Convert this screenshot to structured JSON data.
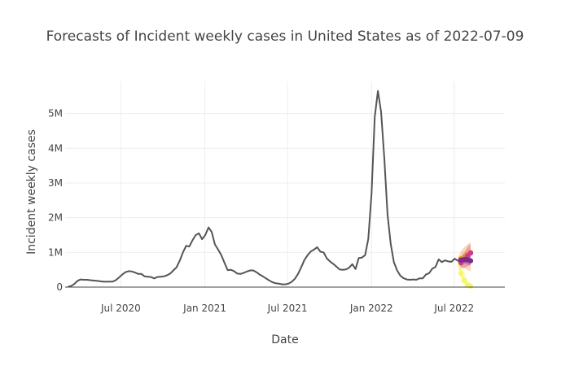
{
  "chart_data": {
    "type": "line",
    "title": "Forecasts of Incident weekly cases in United States as of 2022-07-09",
    "xlabel": "Date",
    "ylabel": "Incident weekly cases",
    "x_ticks": [
      {
        "date": "2020-07-01",
        "label": "Jul 2020"
      },
      {
        "date": "2021-01-01",
        "label": "Jan 2021"
      },
      {
        "date": "2021-07-01",
        "label": "Jul 2021"
      },
      {
        "date": "2022-01-01",
        "label": "Jan 2022"
      },
      {
        "date": "2022-07-01",
        "label": "Jul 2022"
      }
    ],
    "y_ticks": [
      {
        "value": 0,
        "label": "0"
      },
      {
        "value": 1000000,
        "label": "1M"
      },
      {
        "value": 2000000,
        "label": "2M"
      },
      {
        "value": 3000000,
        "label": "3M"
      },
      {
        "value": 4000000,
        "label": "4M"
      },
      {
        "value": 5000000,
        "label": "5M"
      }
    ],
    "xlim": [
      "2020-03-01",
      "2022-10-20"
    ],
    "ylim": [
      0,
      5930000
    ],
    "grid": true,
    "colors": {
      "truth": "#555555",
      "forecast_dark": "#7b2d8e",
      "forecast_mid": "#c93d8a",
      "forecast_orange": "#f0923c",
      "forecast_yellow": "#f5f56a",
      "grid": "#eeeeee",
      "axis": "#444444"
    },
    "series": [
      {
        "kind": "truth",
        "points": [
          [
            "2020-03-07",
            10000
          ],
          [
            "2020-03-14",
            30000
          ],
          [
            "2020-03-21",
            90000
          ],
          [
            "2020-03-28",
            180000
          ],
          [
            "2020-04-04",
            220000
          ],
          [
            "2020-04-11",
            210000
          ],
          [
            "2020-04-18",
            210000
          ],
          [
            "2020-04-25",
            200000
          ],
          [
            "2020-05-02",
            190000
          ],
          [
            "2020-05-09",
            180000
          ],
          [
            "2020-05-16",
            170000
          ],
          [
            "2020-05-23",
            160000
          ],
          [
            "2020-05-30",
            155000
          ],
          [
            "2020-06-06",
            160000
          ],
          [
            "2020-06-13",
            160000
          ],
          [
            "2020-06-20",
            200000
          ],
          [
            "2020-06-27",
            280000
          ],
          [
            "2020-07-04",
            360000
          ],
          [
            "2020-07-11",
            430000
          ],
          [
            "2020-07-18",
            460000
          ],
          [
            "2020-07-25",
            450000
          ],
          [
            "2020-08-01",
            420000
          ],
          [
            "2020-08-08",
            380000
          ],
          [
            "2020-08-15",
            380000
          ],
          [
            "2020-08-22",
            310000
          ],
          [
            "2020-08-29",
            300000
          ],
          [
            "2020-09-05",
            290000
          ],
          [
            "2020-09-12",
            250000
          ],
          [
            "2020-09-19",
            290000
          ],
          [
            "2020-09-26",
            300000
          ],
          [
            "2020-10-03",
            310000
          ],
          [
            "2020-10-10",
            340000
          ],
          [
            "2020-10-17",
            390000
          ],
          [
            "2020-10-24",
            480000
          ],
          [
            "2020-10-31",
            570000
          ],
          [
            "2020-11-07",
            760000
          ],
          [
            "2020-11-14",
            1000000
          ],
          [
            "2020-11-21",
            1190000
          ],
          [
            "2020-11-28",
            1170000
          ],
          [
            "2020-12-05",
            1350000
          ],
          [
            "2020-12-12",
            1500000
          ],
          [
            "2020-12-19",
            1550000
          ],
          [
            "2020-12-26",
            1380000
          ],
          [
            "2021-01-02",
            1500000
          ],
          [
            "2021-01-09",
            1720000
          ],
          [
            "2021-01-16",
            1590000
          ],
          [
            "2021-01-23",
            1230000
          ],
          [
            "2021-01-30",
            1080000
          ],
          [
            "2021-02-06",
            920000
          ],
          [
            "2021-02-13",
            700000
          ],
          [
            "2021-02-20",
            490000
          ],
          [
            "2021-02-27",
            500000
          ],
          [
            "2021-03-06",
            460000
          ],
          [
            "2021-03-13",
            390000
          ],
          [
            "2021-03-20",
            380000
          ],
          [
            "2021-03-27",
            410000
          ],
          [
            "2021-04-03",
            450000
          ],
          [
            "2021-04-10",
            480000
          ],
          [
            "2021-04-17",
            480000
          ],
          [
            "2021-04-24",
            430000
          ],
          [
            "2021-05-01",
            360000
          ],
          [
            "2021-05-08",
            310000
          ],
          [
            "2021-05-15",
            250000
          ],
          [
            "2021-05-22",
            190000
          ],
          [
            "2021-05-29",
            140000
          ],
          [
            "2021-06-05",
            110000
          ],
          [
            "2021-06-12",
            100000
          ],
          [
            "2021-06-19",
            80000
          ],
          [
            "2021-06-26",
            80000
          ],
          [
            "2021-07-03",
            100000
          ],
          [
            "2021-07-10",
            150000
          ],
          [
            "2021-07-17",
            240000
          ],
          [
            "2021-07-24",
            380000
          ],
          [
            "2021-07-31",
            570000
          ],
          [
            "2021-08-07",
            780000
          ],
          [
            "2021-08-14",
            920000
          ],
          [
            "2021-08-21",
            1030000
          ],
          [
            "2021-08-28",
            1080000
          ],
          [
            "2021-09-04",
            1150000
          ],
          [
            "2021-09-11",
            1020000
          ],
          [
            "2021-09-18",
            1000000
          ],
          [
            "2021-09-25",
            830000
          ],
          [
            "2021-10-02",
            740000
          ],
          [
            "2021-10-09",
            670000
          ],
          [
            "2021-10-16",
            590000
          ],
          [
            "2021-10-23",
            510000
          ],
          [
            "2021-10-30",
            500000
          ],
          [
            "2021-11-06",
            510000
          ],
          [
            "2021-11-13",
            560000
          ],
          [
            "2021-11-20",
            660000
          ],
          [
            "2021-11-27",
            520000
          ],
          [
            "2021-12-04",
            840000
          ],
          [
            "2021-12-11",
            850000
          ],
          [
            "2021-12-18",
            920000
          ],
          [
            "2021-12-25",
            1390000
          ],
          [
            "2022-01-01",
            2700000
          ],
          [
            "2022-01-08",
            4900000
          ],
          [
            "2022-01-15",
            5650000
          ],
          [
            "2022-01-22",
            5050000
          ],
          [
            "2022-01-29",
            3700000
          ],
          [
            "2022-02-05",
            2100000
          ],
          [
            "2022-02-12",
            1250000
          ],
          [
            "2022-02-19",
            720000
          ],
          [
            "2022-02-26",
            480000
          ],
          [
            "2022-03-05",
            330000
          ],
          [
            "2022-03-12",
            260000
          ],
          [
            "2022-03-19",
            220000
          ],
          [
            "2022-03-26",
            210000
          ],
          [
            "2022-04-02",
            220000
          ],
          [
            "2022-04-09",
            210000
          ],
          [
            "2022-04-16",
            250000
          ],
          [
            "2022-04-23",
            250000
          ],
          [
            "2022-04-30",
            360000
          ],
          [
            "2022-05-07",
            400000
          ],
          [
            "2022-05-14",
            530000
          ],
          [
            "2022-05-21",
            580000
          ],
          [
            "2022-05-28",
            800000
          ],
          [
            "2022-06-04",
            720000
          ],
          [
            "2022-06-11",
            770000
          ],
          [
            "2022-06-18",
            740000
          ],
          [
            "2022-06-25",
            730000
          ],
          [
            "2022-07-02",
            820000
          ],
          [
            "2022-07-09",
            760000
          ]
        ]
      },
      {
        "kind": "forecast",
        "color": "#f5f56a",
        "points": [
          [
            "2022-07-09",
            760000
          ],
          [
            "2022-07-16",
            400000
          ],
          [
            "2022-07-23",
            200000
          ],
          [
            "2022-07-30",
            60000
          ],
          [
            "2022-08-06",
            30000
          ]
        ],
        "band": [
          [
            "2022-07-09",
            600000,
            900000
          ],
          [
            "2022-07-16",
            150000,
            800000
          ],
          [
            "2022-07-23",
            40000,
            500000
          ],
          [
            "2022-07-30",
            0,
            200000
          ],
          [
            "2022-08-06",
            0,
            120000
          ]
        ]
      },
      {
        "kind": "forecast",
        "color": "#f0923c",
        "points": [
          [
            "2022-07-09",
            760000
          ],
          [
            "2022-07-16",
            820000
          ],
          [
            "2022-07-23",
            880000
          ],
          [
            "2022-07-30",
            950000
          ],
          [
            "2022-08-06",
            1000000
          ]
        ],
        "band": [
          [
            "2022-07-09",
            700000,
            820000
          ],
          [
            "2022-07-16",
            600000,
            1050000
          ],
          [
            "2022-07-23",
            550000,
            1150000
          ],
          [
            "2022-07-30",
            500000,
            1230000
          ],
          [
            "2022-08-06",
            450000,
            1300000
          ]
        ]
      },
      {
        "kind": "forecast",
        "color": "#c93d8a",
        "points": [
          [
            "2022-07-09",
            760000
          ],
          [
            "2022-07-16",
            700000
          ],
          [
            "2022-07-23",
            780000
          ],
          [
            "2022-07-30",
            900000
          ],
          [
            "2022-08-06",
            980000
          ]
        ],
        "band": [
          [
            "2022-07-09",
            700000,
            820000
          ],
          [
            "2022-07-16",
            550000,
            880000
          ],
          [
            "2022-07-23",
            550000,
            1000000
          ],
          [
            "2022-07-30",
            600000,
            1150000
          ],
          [
            "2022-08-06",
            650000,
            1250000
          ]
        ]
      },
      {
        "kind": "forecast",
        "color": "#7b2d8e",
        "points": [
          [
            "2022-07-09",
            760000
          ],
          [
            "2022-07-16",
            780000
          ],
          [
            "2022-07-23",
            800000
          ],
          [
            "2022-07-30",
            790000
          ],
          [
            "2022-08-06",
            760000
          ]
        ],
        "band": [
          [
            "2022-07-09",
            720000,
            800000
          ],
          [
            "2022-07-16",
            700000,
            880000
          ],
          [
            "2022-07-23",
            680000,
            920000
          ],
          [
            "2022-07-30",
            650000,
            950000
          ],
          [
            "2022-08-06",
            620000,
            970000
          ]
        ]
      }
    ]
  }
}
